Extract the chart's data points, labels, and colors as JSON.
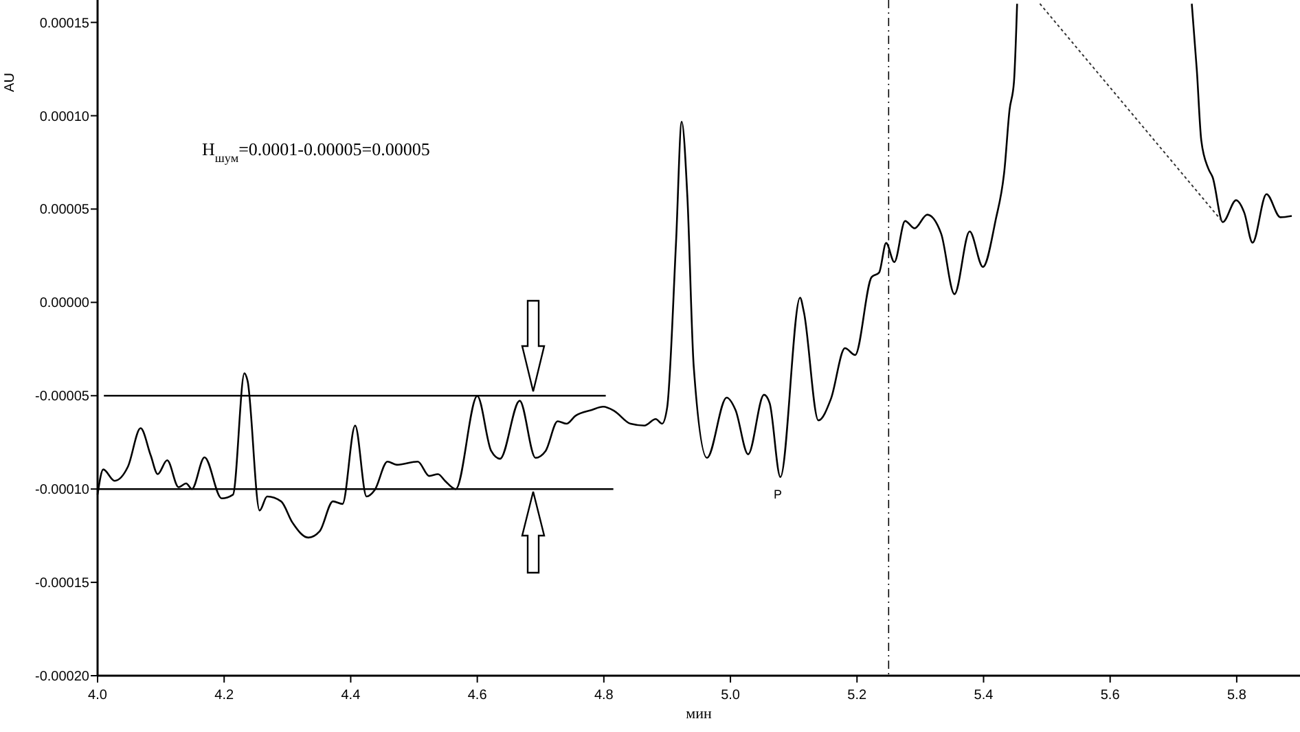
{
  "chart_data": {
    "type": "line",
    "xlabel": "мин",
    "ylabel": "AU",
    "xlim": [
      4.0,
      5.9
    ],
    "ylim": [
      -0.0002,
      0.000162
    ],
    "xticks": [
      {
        "value": 4.0,
        "label": "4.0"
      },
      4.2,
      4.4,
      4.6,
      4.8,
      {
        "value": 5.0,
        "label": "5.0"
      },
      5.2,
      5.4,
      5.6,
      5.8
    ],
    "yticks": [
      {
        "value": -0.0002,
        "label": "-0.00020"
      },
      {
        "value": -0.00015,
        "label": "-0.00015"
      },
      {
        "value": -0.0001,
        "label": "-0.00010"
      },
      {
        "value": -5e-05,
        "label": "-0.00005"
      },
      {
        "value": 0,
        "label": "0.00000"
      },
      {
        "value": 5e-05,
        "label": "0.00005"
      },
      {
        "value": 0.0001,
        "label": "0.00010"
      },
      {
        "value": 0.00015,
        "label": "0.00015"
      }
    ],
    "grid": false,
    "marker": "none",
    "series": [
      {
        "color": "#000000",
        "line_style": "solid",
        "x": [
          4.0,
          4.009,
          4.027,
          4.048,
          4.068,
          4.084,
          4.095,
          4.11,
          4.128,
          4.14,
          4.149,
          4.169,
          4.196,
          4.214,
          4.232,
          4.237,
          4.256,
          4.268,
          4.29,
          4.308,
          4.333,
          4.351,
          4.372,
          4.387,
          4.407,
          4.425,
          4.438,
          4.458,
          4.473,
          4.506,
          4.524,
          4.538,
          4.549,
          4.566,
          4.6,
          4.622,
          4.636,
          4.667,
          4.692,
          4.708,
          4.727,
          4.741,
          4.755,
          4.781,
          4.799,
          4.817,
          4.842,
          4.864,
          4.882,
          4.892,
          4.9,
          4.914,
          4.923,
          4.932,
          4.942,
          4.963,
          4.994,
          5.008,
          5.028,
          5.053,
          5.062,
          5.079,
          5.11,
          5.116,
          5.139,
          5.159,
          5.181,
          5.197,
          5.223,
          5.235,
          5.246,
          5.259,
          5.276,
          5.291,
          5.311,
          5.333,
          5.354,
          5.378,
          5.399,
          5.419,
          5.433,
          5.441,
          5.448,
          5.453,
          5.6,
          5.729,
          5.737,
          5.744,
          5.755,
          5.762,
          5.778,
          5.799,
          5.812,
          5.825,
          5.847,
          5.869,
          5.887
        ],
        "values": [
          -0.000103,
          -8.95e-05,
          -9.56e-05,
          -8.8e-05,
          -6.74e-05,
          -8.2e-05,
          -9.2e-05,
          -8.46e-05,
          -9.9e-05,
          -9.7e-05,
          -0.0001,
          -8.3e-05,
          -0.000105,
          -0.000103,
          -3.8e-05,
          -4.2e-05,
          -0.0001115,
          -0.000104,
          -0.0001066,
          -0.000118,
          -0.000126,
          -0.0001226,
          -0.0001066,
          -0.000108,
          -6.6e-05,
          -0.000104,
          -0.0001005,
          -8.53e-05,
          -8.7e-05,
          -8.53e-05,
          -9.3e-05,
          -9.2e-05,
          -9.56e-05,
          -0.0001,
          -5.02e-05,
          -7.96e-05,
          -8.38e-05,
          -5.27e-05,
          -8.33e-05,
          -7.96e-05,
          -6.37e-05,
          -6.5e-05,
          -6.08e-05,
          -5.76e-05,
          -5.59e-05,
          -5.83e-05,
          -6.5e-05,
          -6.6e-05,
          -6.25e-05,
          -6.5e-05,
          -5.64e-05,
          3.18e-05,
          9.68e-05,
          5.64e-05,
          -3.43e-05,
          -8.33e-05,
          -5.1e-05,
          -5.76e-05,
          -8.14e-05,
          -4.95e-05,
          -5.4e-05,
          -9.36e-05,
          2.5e-06,
          -5e-06,
          -6.32e-05,
          -5.15e-05,
          -2.45e-05,
          -2.82e-05,
          1.35e-05,
          1.6e-05,
          3.18e-05,
          2.16e-05,
          4.36e-05,
          3.97e-05,
          4.7e-05,
          3.68e-05,
          4.4e-06,
          3.8e-05,
          1.9e-05,
          4.4e-05,
          7.1e-05,
          0.000103,
          0.000118,
          0.00016,
          null,
          0.00016,
          0.0001243,
          8.68e-05,
          7.18e-05,
          6.7e-05,
          4.3e-05,
          5.47e-05,
          4.8e-05,
          3.2e-05,
          5.8e-05,
          4.56e-05,
          4.63e-05
        ]
      },
      {
        "color": "#333333",
        "line_style": "dotted",
        "x": [
          5.489,
          5.778
        ],
        "values": [
          0.00016,
          4.3e-05
        ]
      },
      {
        "color": "#000000",
        "line_style": "solid",
        "x": [
          4.01,
          4.803
        ],
        "values": [
          -5e-05,
          -5e-05
        ]
      },
      {
        "color": "#000000",
        "line_style": "solid",
        "x": [
          4.0,
          4.815
        ],
        "values": [
          -0.0001,
          -0.0001
        ]
      }
    ],
    "ref_lines": [
      {
        "axis": "x",
        "value": 5.25,
        "color": "#000000",
        "line_style": "dashed"
      }
    ],
    "annotations": [
      "H$_{шум}$=0.0001-0.00005=0.00005",
      "P"
    ]
  }
}
